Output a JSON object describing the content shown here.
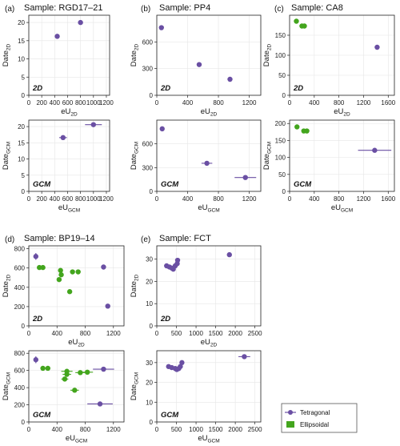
{
  "colors": {
    "tetragonal": "#6a4fa3",
    "ellipsoidal": "#43a51d",
    "axis": "#222222",
    "grid": "#e6e6e6"
  },
  "legend": {
    "items": [
      {
        "label": "Tetragonal",
        "color": "#6a4fa3"
      },
      {
        "label": "Ellipsoidal",
        "color": "#43a51d"
      }
    ]
  },
  "chart_data": [
    {
      "panel": "(a)",
      "title": "Sample: RGD17–21",
      "type": "scatter",
      "top": {
        "method": "2D",
        "xlabel_base": "eU",
        "xlabel_sub": "2D",
        "ylabel_base": "Date",
        "ylabel_sub": "2D",
        "xlim": [
          0,
          1250
        ],
        "ylim": [
          0,
          22
        ],
        "xticks": [
          0,
          200,
          400,
          600,
          800,
          1000,
          1200
        ],
        "yticks": [
          0,
          5,
          10,
          15,
          20
        ],
        "points": [
          {
            "x": 440,
            "y": 16.2,
            "group": "tetragonal"
          },
          {
            "x": 800,
            "y": 20.0,
            "group": "tetragonal"
          }
        ]
      },
      "bottom": {
        "method": "GCM",
        "xlabel_base": "eU",
        "xlabel_sub": "GCM",
        "ylabel_base": "Date",
        "ylabel_sub": "GCM",
        "xlim": [
          0,
          1250
        ],
        "ylim": [
          0,
          22
        ],
        "xticks": [
          0,
          200,
          400,
          600,
          800,
          1000,
          1200
        ],
        "yticks": [
          0,
          5,
          10,
          15,
          20
        ],
        "points": [
          {
            "x": 530,
            "y": 16.6,
            "xerr": 60,
            "group": "tetragonal"
          },
          {
            "x": 1000,
            "y": 20.6,
            "xerr": 130,
            "group": "tetragonal"
          }
        ]
      }
    },
    {
      "panel": "(b)",
      "title": "Sample: PP4",
      "type": "scatter",
      "top": {
        "method": "2D",
        "xlabel_base": "eU",
        "xlabel_sub": "2D",
        "ylabel_base": "Date",
        "ylabel_sub": "2D",
        "xlim": [
          0,
          1350
        ],
        "ylim": [
          0,
          900
        ],
        "xticks": [
          0,
          400,
          800,
          1200
        ],
        "yticks": [
          0,
          300,
          600
        ],
        "points": [
          {
            "x": 60,
            "y": 760,
            "group": "tetragonal"
          },
          {
            "x": 550,
            "y": 345,
            "group": "tetragonal"
          },
          {
            "x": 950,
            "y": 180,
            "group": "tetragonal"
          }
        ]
      },
      "bottom": {
        "method": "GCM",
        "xlabel_base": "eU",
        "xlabel_sub": "GCM",
        "ylabel_base": "Date",
        "ylabel_sub": "GCM",
        "xlim": [
          0,
          1350
        ],
        "ylim": [
          0,
          900
        ],
        "xticks": [
          0,
          400,
          800,
          1200
        ],
        "yticks": [
          0,
          300,
          600
        ],
        "points": [
          {
            "x": 70,
            "y": 790,
            "group": "tetragonal"
          },
          {
            "x": 650,
            "y": 355,
            "xerr": 70,
            "group": "tetragonal"
          },
          {
            "x": 1150,
            "y": 175,
            "xerr": 140,
            "group": "tetragonal"
          }
        ]
      }
    },
    {
      "panel": "(c)",
      "title": "Sample: CA8",
      "type": "scatter",
      "top": {
        "method": "2D",
        "xlabel_base": "eU",
        "xlabel_sub": "2D",
        "ylabel_base": "Date",
        "ylabel_sub": "2D",
        "xlim": [
          0,
          1700
        ],
        "ylim": [
          0,
          200
        ],
        "xticks": [
          0,
          400,
          800,
          1200,
          1600
        ],
        "yticks": [
          0,
          50,
          100,
          150
        ],
        "points": [
          {
            "x": 110,
            "y": 185,
            "group": "ellipsoidal"
          },
          {
            "x": 200,
            "y": 173,
            "group": "ellipsoidal"
          },
          {
            "x": 240,
            "y": 173,
            "group": "ellipsoidal"
          },
          {
            "x": 1420,
            "y": 120,
            "group": "tetragonal"
          }
        ]
      },
      "bottom": {
        "method": "GCM",
        "xlabel_base": "eU",
        "xlabel_sub": "GCM",
        "ylabel_base": "Date",
        "ylabel_sub": "GCM",
        "xlim": [
          0,
          1700
        ],
        "ylim": [
          0,
          210
        ],
        "xticks": [
          0,
          400,
          800,
          1200,
          1600
        ],
        "yticks": [
          0,
          50,
          100,
          150,
          200
        ],
        "points": [
          {
            "x": 120,
            "y": 190,
            "group": "ellipsoidal"
          },
          {
            "x": 230,
            "y": 178,
            "group": "ellipsoidal"
          },
          {
            "x": 280,
            "y": 178,
            "group": "ellipsoidal"
          },
          {
            "x": 1380,
            "y": 121,
            "xerr": 270,
            "group": "tetragonal"
          }
        ]
      }
    },
    {
      "panel": "(d)",
      "title": "Sample: BP19–14",
      "type": "scatter",
      "top": {
        "method": "2D",
        "xlabel_base": "eU",
        "xlabel_sub": "2D",
        "ylabel_base": "Date",
        "ylabel_sub": "2D",
        "xlim": [
          0,
          1350
        ],
        "ylim": [
          0,
          830
        ],
        "xticks": [
          0,
          400,
          800,
          1200
        ],
        "yticks": [
          0,
          200,
          400,
          600,
          800
        ],
        "points": [
          {
            "x": 100,
            "y": 720,
            "yerr": 35,
            "group": "tetragonal"
          },
          {
            "x": 1060,
            "y": 610,
            "group": "tetragonal"
          },
          {
            "x": 1120,
            "y": 205,
            "group": "tetragonal"
          },
          {
            "x": 150,
            "y": 605,
            "group": "ellipsoidal"
          },
          {
            "x": 200,
            "y": 605,
            "group": "ellipsoidal"
          },
          {
            "x": 450,
            "y": 575,
            "group": "ellipsoidal"
          },
          {
            "x": 460,
            "y": 530,
            "group": "ellipsoidal"
          },
          {
            "x": 430,
            "y": 480,
            "group": "ellipsoidal"
          },
          {
            "x": 620,
            "y": 560,
            "group": "ellipsoidal"
          },
          {
            "x": 700,
            "y": 560,
            "group": "ellipsoidal"
          },
          {
            "x": 580,
            "y": 355,
            "group": "ellipsoidal"
          }
        ]
      },
      "bottom": {
        "method": "GCM",
        "xlabel_base": "eU",
        "xlabel_sub": "GCM",
        "ylabel_base": "Date",
        "ylabel_sub": "GCM",
        "xlim": [
          0,
          1350
        ],
        "ylim": [
          0,
          830
        ],
        "xticks": [
          0,
          400,
          800,
          1200
        ],
        "yticks": [
          0,
          200,
          400,
          600,
          800
        ],
        "points": [
          {
            "x": 100,
            "y": 725,
            "yerr": 40,
            "group": "tetragonal"
          },
          {
            "x": 1060,
            "y": 615,
            "xerr": 150,
            "group": "tetragonal"
          },
          {
            "x": 1010,
            "y": 210,
            "xerr": 180,
            "group": "tetragonal"
          },
          {
            "x": 200,
            "y": 625,
            "group": "ellipsoidal"
          },
          {
            "x": 270,
            "y": 625,
            "group": "ellipsoidal"
          },
          {
            "x": 540,
            "y": 590,
            "xerr": 80,
            "group": "ellipsoidal"
          },
          {
            "x": 540,
            "y": 555,
            "xerr": 60,
            "group": "ellipsoidal"
          },
          {
            "x": 510,
            "y": 500,
            "xerr": 50,
            "group": "ellipsoidal"
          },
          {
            "x": 730,
            "y": 575,
            "xerr": 70,
            "group": "ellipsoidal"
          },
          {
            "x": 830,
            "y": 580,
            "xerr": 80,
            "group": "ellipsoidal"
          },
          {
            "x": 650,
            "y": 370,
            "xerr": 60,
            "group": "ellipsoidal"
          }
        ]
      }
    },
    {
      "panel": "(e)",
      "title": "Sample: FCT",
      "type": "scatter",
      "top": {
        "method": "2D",
        "xlabel_base": "eU",
        "xlabel_sub": "2D",
        "ylabel_base": "Date",
        "ylabel_sub": "2D",
        "xlim": [
          0,
          2650
        ],
        "ylim": [
          0,
          36
        ],
        "xticks": [
          0,
          500,
          1000,
          1500,
          2000,
          2500
        ],
        "yticks": [
          0,
          10,
          20,
          30
        ],
        "points": [
          {
            "x": 250,
            "y": 27.0,
            "group": "tetragonal"
          },
          {
            "x": 320,
            "y": 26.5,
            "group": "tetragonal"
          },
          {
            "x": 380,
            "y": 26.0,
            "group": "tetragonal"
          },
          {
            "x": 420,
            "y": 25.5,
            "group": "tetragonal"
          },
          {
            "x": 470,
            "y": 27.0,
            "group": "tetragonal"
          },
          {
            "x": 520,
            "y": 28.0,
            "group": "tetragonal"
          },
          {
            "x": 530,
            "y": 29.5,
            "group": "tetragonal"
          },
          {
            "x": 1850,
            "y": 32.0,
            "group": "tetragonal"
          }
        ]
      },
      "bottom": {
        "method": "GCM",
        "xlabel_base": "eU",
        "xlabel_sub": "GCM",
        "ylabel_base": "Date",
        "ylabel_sub": "GCM",
        "xlim": [
          0,
          2650
        ],
        "ylim": [
          0,
          36
        ],
        "xticks": [
          0,
          500,
          1000,
          1500,
          2000,
          2500
        ],
        "yticks": [
          0,
          10,
          20,
          30
        ],
        "points": [
          {
            "x": 300,
            "y": 28.0,
            "group": "tetragonal"
          },
          {
            "x": 380,
            "y": 27.5,
            "group": "tetragonal"
          },
          {
            "x": 470,
            "y": 27.0,
            "group": "tetragonal"
          },
          {
            "x": 510,
            "y": 26.5,
            "group": "tetragonal"
          },
          {
            "x": 560,
            "y": 27.0,
            "group": "tetragonal"
          },
          {
            "x": 600,
            "y": 28.0,
            "group": "tetragonal"
          },
          {
            "x": 640,
            "y": 30.0,
            "group": "tetragonal"
          },
          {
            "x": 2230,
            "y": 33.0,
            "xerr": 150,
            "group": "tetragonal"
          }
        ]
      }
    }
  ]
}
